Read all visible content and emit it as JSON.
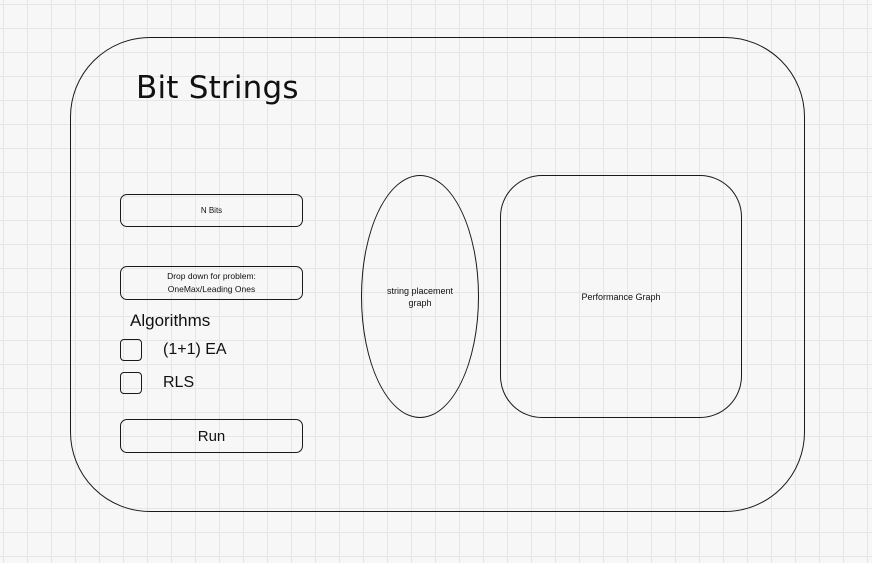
{
  "title": "Bit Strings",
  "inputs": {
    "n_bits": "N Bits",
    "dropdown_line1": "Drop down for problem:",
    "dropdown_line2": "OneMax/Leading Ones"
  },
  "algorithms": {
    "label": "Algorithms",
    "options": [
      {
        "label": "(1+1) EA",
        "checked": false
      },
      {
        "label": "RLS",
        "checked": false
      }
    ]
  },
  "run_label": "Run",
  "graphs": {
    "string_placement_line1": "string placement",
    "string_placement_line2": "graph",
    "performance": "Performance Graph"
  }
}
